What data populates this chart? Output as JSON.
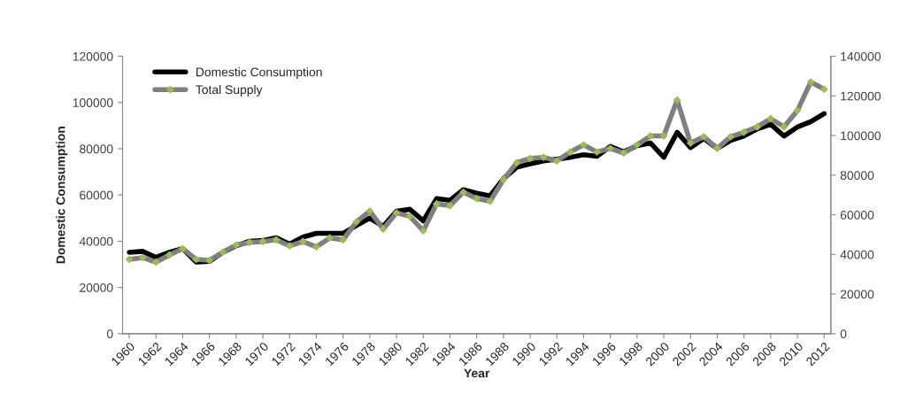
{
  "chart_data": {
    "type": "line",
    "xlabel": "Year",
    "ylabel": "Domestic Consumption",
    "x": [
      1960,
      1961,
      1962,
      1963,
      1964,
      1965,
      1966,
      1967,
      1968,
      1969,
      1970,
      1971,
      1972,
      1973,
      1974,
      1975,
      1976,
      1977,
      1978,
      1979,
      1980,
      1981,
      1982,
      1983,
      1984,
      1985,
      1986,
      1987,
      1988,
      1989,
      1990,
      1991,
      1992,
      1993,
      1994,
      1995,
      1996,
      1997,
      1998,
      1999,
      2000,
      2001,
      2002,
      2003,
      2004,
      2005,
      2006,
      2007,
      2008,
      2009,
      2010,
      2011,
      2012
    ],
    "xlim": [
      1959.5,
      2012.5
    ],
    "xticks": [
      1960,
      1962,
      1964,
      1966,
      1968,
      1970,
      1972,
      1974,
      1976,
      1978,
      1980,
      1982,
      1984,
      1986,
      1988,
      1990,
      1992,
      1994,
      1996,
      1998,
      2000,
      2002,
      2004,
      2006,
      2008,
      2010,
      2012
    ],
    "ylim": [
      0,
      120000
    ],
    "yticks": [
      0,
      20000,
      40000,
      60000,
      80000,
      100000,
      120000
    ],
    "y2lim": [
      0,
      140000
    ],
    "y2ticks": [
      0,
      20000,
      40000,
      60000,
      80000,
      100000,
      120000,
      140000
    ],
    "grid": false,
    "legend": "top left",
    "line_style": "solid",
    "series": [
      {
        "name": "Domestic Consumption",
        "color": "#000000",
        "marker": "none",
        "values": [
          35200,
          35600,
          33000,
          35200,
          36800,
          31000,
          31300,
          35200,
          38000,
          40000,
          40300,
          41500,
          38700,
          41800,
          43400,
          43400,
          43400,
          46800,
          50000,
          46400,
          53000,
          53800,
          48800,
          58400,
          57700,
          62300,
          60800,
          59600,
          67000,
          72000,
          73500,
          74700,
          75500,
          76300,
          77400,
          76700,
          81000,
          78600,
          81300,
          82500,
          76300,
          87100,
          80500,
          84400,
          80100,
          83600,
          85500,
          88600,
          90600,
          85500,
          89400,
          91700,
          95200
        ]
      },
      {
        "name": "Total Supply",
        "color": "#808080",
        "axis": "y2",
        "marker": "diamond",
        "values": [
          37500,
          38400,
          36100,
          39700,
          42900,
          37500,
          37000,
          41100,
          44700,
          46100,
          46500,
          47400,
          44300,
          46500,
          43800,
          48300,
          47400,
          56400,
          61900,
          52800,
          61000,
          59200,
          51900,
          65500,
          64600,
          71400,
          68200,
          66800,
          77700,
          86300,
          88500,
          89000,
          87200,
          91700,
          95300,
          91700,
          93500,
          91200,
          95300,
          99800,
          99800,
          117900,
          96200,
          99400,
          93500,
          99400,
          101700,
          104400,
          108500,
          104400,
          112600,
          127000,
          123400
        ]
      }
    ]
  }
}
